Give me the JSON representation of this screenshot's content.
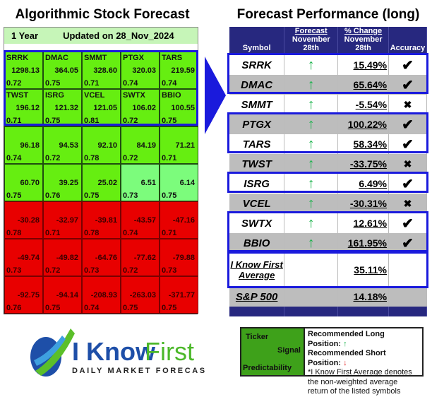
{
  "left": {
    "title": "Algorithmic Stock Forecast",
    "horizon": "1 Year",
    "updated": "Updated on 28_Nov_2024",
    "cells": [
      {
        "t": "SRRK",
        "v": "1298.13",
        "p": "0.72",
        "c": "g"
      },
      {
        "t": "DMAC",
        "v": "364.05",
        "p": "0.75",
        "c": "g"
      },
      {
        "t": "SMMT",
        "v": "328.60",
        "p": "0.71",
        "c": "g"
      },
      {
        "t": "PTGX",
        "v": "320.03",
        "p": "0.74",
        "c": "g"
      },
      {
        "t": "TARS",
        "v": "219.59",
        "p": "0.74",
        "c": "g"
      },
      {
        "t": "TWST",
        "v": "196.12",
        "p": "0.71",
        "c": "g"
      },
      {
        "t": "ISRG",
        "v": "121.32",
        "p": "0.75",
        "c": "g"
      },
      {
        "t": "VCEL",
        "v": "121.05",
        "p": "0.81",
        "c": "g"
      },
      {
        "t": "SWTX",
        "v": "106.02",
        "p": "0.72",
        "c": "g"
      },
      {
        "t": "BBIO",
        "v": "100.55",
        "p": "0.75",
        "c": "g"
      },
      {
        "t": "",
        "v": "96.18",
        "p": "0.74",
        "c": "g"
      },
      {
        "t": "",
        "v": "94.53",
        "p": "0.72",
        "c": "g"
      },
      {
        "t": "",
        "v": "92.10",
        "p": "0.78",
        "c": "g"
      },
      {
        "t": "",
        "v": "84.19",
        "p": "0.72",
        "c": "g"
      },
      {
        "t": "",
        "v": "71.21",
        "p": "0.71",
        "c": "g"
      },
      {
        "t": "",
        "v": "60.70",
        "p": "0.75",
        "c": "g"
      },
      {
        "t": "",
        "v": "39.25",
        "p": "0.76",
        "c": "g"
      },
      {
        "t": "",
        "v": "25.02",
        "p": "0.75",
        "c": "g"
      },
      {
        "t": "",
        "v": "6.51",
        "p": "0.73",
        "c": "lg"
      },
      {
        "t": "",
        "v": "6.14",
        "p": "0.75",
        "c": "lg"
      },
      {
        "t": "",
        "v": "-30.28",
        "p": "0.78",
        "c": "r"
      },
      {
        "t": "",
        "v": "-32.97",
        "p": "0.71",
        "c": "r"
      },
      {
        "t": "",
        "v": "-39.81",
        "p": "0.78",
        "c": "r"
      },
      {
        "t": "",
        "v": "-43.57",
        "p": "0.74",
        "c": "r"
      },
      {
        "t": "",
        "v": "-47.16",
        "p": "0.71",
        "c": "r"
      },
      {
        "t": "",
        "v": "-49.74",
        "p": "0.73",
        "c": "r"
      },
      {
        "t": "",
        "v": "-49.82",
        "p": "0.72",
        "c": "r"
      },
      {
        "t": "",
        "v": "-64.76",
        "p": "0.73",
        "c": "r"
      },
      {
        "t": "",
        "v": "-77.62",
        "p": "0.72",
        "c": "r"
      },
      {
        "t": "",
        "v": "-79.88",
        "p": "0.73",
        "c": "r"
      },
      {
        "t": "",
        "v": "-92.75",
        "p": "0.76",
        "c": "r"
      },
      {
        "t": "",
        "v": "-94.14",
        "p": "0.75",
        "c": "r"
      },
      {
        "t": "",
        "v": "-208.93",
        "p": "0.74",
        "c": "r"
      },
      {
        "t": "",
        "v": "-263.03",
        "p": "0.75",
        "c": "r"
      },
      {
        "t": "",
        "v": "-371.77",
        "p": "0.75",
        "c": "r"
      }
    ]
  },
  "right": {
    "title": "Forecast Performance (long)",
    "headers": {
      "symbol": "Symbol",
      "forecast": "Forecast",
      "forecast_date": "November 28th",
      "change": "% Change",
      "change_date": "November 28th",
      "accuracy": "Accuracy"
    },
    "rows": [
      {
        "sym": "SRRK",
        "chg": "15.49%",
        "acc": "check"
      },
      {
        "sym": "DMAC",
        "chg": "65.64%",
        "acc": "check"
      },
      {
        "sym": "SMMT",
        "chg": "-5.54%",
        "acc": "cross"
      },
      {
        "sym": "PTGX",
        "chg": "100.22%",
        "acc": "check"
      },
      {
        "sym": "TARS",
        "chg": "58.34%",
        "acc": "check"
      },
      {
        "sym": "TWST",
        "chg": "-33.75%",
        "acc": "cross"
      },
      {
        "sym": "ISRG",
        "chg": "6.49%",
        "acc": "check"
      },
      {
        "sym": "VCEL",
        "chg": "-30.31%",
        "acc": "cross"
      },
      {
        "sym": "SWTX",
        "chg": "12.61%",
        "acc": "check"
      },
      {
        "sym": "BBIO",
        "chg": "161.95%",
        "acc": "check"
      }
    ],
    "average": {
      "label1": "I Know First",
      "label2": "Average",
      "chg": "35.11%"
    },
    "sp500": {
      "label": "S&P 500",
      "chg": "14.18%"
    }
  },
  "legend": {
    "ticker": "Ticker",
    "signal": "Signal",
    "predictability": "Predictability",
    "long": "Recommended Long Position:",
    "short": "Recommended Short Position:",
    "note_link": "*I Know First Average",
    "note_rest": " denotes the non-weighted average return of the listed symbols"
  },
  "logo": {
    "name1": "I Know",
    "name2": "First",
    "tagline": "Daily Market Forecast"
  },
  "colors": {
    "up": "#19b24a",
    "down": "#e02020",
    "header": "#27287f",
    "outline": "#1a1adc"
  }
}
